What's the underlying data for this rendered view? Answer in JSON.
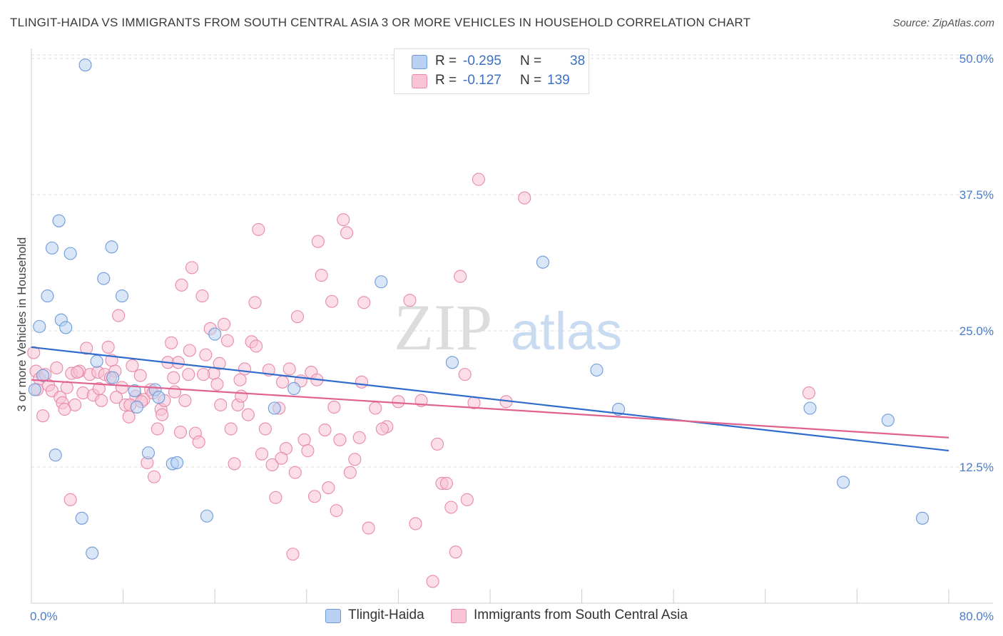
{
  "title": "TLINGIT-HAIDA VS IMMIGRANTS FROM SOUTH CENTRAL ASIA 3 OR MORE VEHICLES IN HOUSEHOLD CORRELATION CHART",
  "source": "Source: ZipAtlas.com",
  "watermark": {
    "zip": "ZIP",
    "atlas": "atlas"
  },
  "legend": {
    "r_label": "R =",
    "n_label": "N =",
    "series": [
      {
        "name": "Tlingit-Haida",
        "r": "-0.295",
        "n": "38"
      },
      {
        "name": "Immigrants from South Central Asia",
        "r": "-0.127",
        "n": "139"
      }
    ]
  },
  "colors": {
    "blue_fill": "#b8d1f3",
    "blue_stroke": "#6f9ad8",
    "blue_line": "#2f6ccb",
    "pink_fill": "#f8c3d3",
    "pink_stroke": "#e88aa8",
    "pink_line": "#e0628d",
    "tick": "#4a7cc9",
    "grid": "#dddddd"
  },
  "chart_data": {
    "type": "scatter",
    "xlabel": "",
    "ylabel": "3 or more Vehicles in Household",
    "xlim": [
      0,
      80
    ],
    "ylim": [
      0,
      50
    ],
    "x_tick_labels": [
      "0.0%",
      "80.0%"
    ],
    "y_ticks": [
      12.5,
      25.0,
      37.5,
      50.0
    ],
    "y_tick_labels": [
      "12.5%",
      "25.0%",
      "37.5%",
      "50.0%"
    ],
    "grid": "horizontal dashed",
    "legend_position": "top-center",
    "series": [
      {
        "name": "Tlingit-Haida",
        "trend": {
          "x": [
            0,
            80
          ],
          "y": [
            23.5,
            14.0
          ]
        },
        "points": [
          [
            4.7,
            49.4
          ],
          [
            2.4,
            35.1
          ],
          [
            1.8,
            32.6
          ],
          [
            3.4,
            32.1
          ],
          [
            7.0,
            32.7
          ],
          [
            6.3,
            29.8
          ],
          [
            1.4,
            28.2
          ],
          [
            7.9,
            28.2
          ],
          [
            0.7,
            25.4
          ],
          [
            2.6,
            26.0
          ],
          [
            3.0,
            25.3
          ],
          [
            5.7,
            22.2
          ],
          [
            1.0,
            20.9
          ],
          [
            0.3,
            19.6
          ],
          [
            7.1,
            20.7
          ],
          [
            9.0,
            19.5
          ],
          [
            10.8,
            19.6
          ],
          [
            11.1,
            18.9
          ],
          [
            9.2,
            18.0
          ],
          [
            16.0,
            24.7
          ],
          [
            21.2,
            17.9
          ],
          [
            22.9,
            19.7
          ],
          [
            30.5,
            29.5
          ],
          [
            36.7,
            22.1
          ],
          [
            2.1,
            13.6
          ],
          [
            10.2,
            13.8
          ],
          [
            12.3,
            12.8
          ],
          [
            12.7,
            12.9
          ],
          [
            4.4,
            7.8
          ],
          [
            15.3,
            8.0
          ],
          [
            5.3,
            4.6
          ],
          [
            44.6,
            31.3
          ],
          [
            49.3,
            21.4
          ],
          [
            51.2,
            17.8
          ],
          [
            67.9,
            17.9
          ],
          [
            74.7,
            16.8
          ],
          [
            70.8,
            11.1
          ],
          [
            77.7,
            7.8
          ]
        ]
      },
      {
        "name": "Immigrants from South Central Asia",
        "trend": {
          "x": [
            0,
            80
          ],
          "y": [
            20.5,
            15.2
          ]
        },
        "points": [
          [
            0.2,
            23.0
          ],
          [
            0.4,
            21.3
          ],
          [
            0.7,
            20.6
          ],
          [
            0.5,
            19.6
          ],
          [
            1.2,
            21.0
          ],
          [
            1.5,
            20.0
          ],
          [
            1.8,
            19.5
          ],
          [
            2.2,
            21.6
          ],
          [
            2.5,
            18.9
          ],
          [
            2.7,
            18.4
          ],
          [
            3.1,
            19.8
          ],
          [
            3.5,
            21.1
          ],
          [
            3.8,
            18.2
          ],
          [
            4.2,
            21.3
          ],
          [
            4.5,
            19.3
          ],
          [
            4.8,
            23.4
          ],
          [
            5.1,
            21.0
          ],
          [
            5.4,
            19.1
          ],
          [
            5.8,
            21.2
          ],
          [
            6.1,
            18.6
          ],
          [
            6.4,
            21.0
          ],
          [
            6.7,
            23.5
          ],
          [
            7.0,
            22.3
          ],
          [
            7.3,
            21.3
          ],
          [
            7.6,
            26.4
          ],
          [
            7.9,
            19.8
          ],
          [
            8.2,
            18.2
          ],
          [
            8.5,
            17.1
          ],
          [
            8.8,
            21.8
          ],
          [
            9.1,
            19.0
          ],
          [
            9.5,
            20.9
          ],
          [
            9.8,
            18.7
          ],
          [
            10.1,
            12.9
          ],
          [
            10.4,
            19.6
          ],
          [
            10.7,
            11.6
          ],
          [
            11.0,
            16.0
          ],
          [
            11.3,
            17.8
          ],
          [
            11.6,
            18.6
          ],
          [
            11.9,
            22.1
          ],
          [
            12.2,
            23.9
          ],
          [
            12.5,
            19.4
          ],
          [
            12.8,
            22.1
          ],
          [
            13.1,
            29.2
          ],
          [
            13.4,
            18.6
          ],
          [
            13.7,
            21.0
          ],
          [
            14.0,
            30.8
          ],
          [
            14.3,
            15.6
          ],
          [
            14.6,
            14.8
          ],
          [
            14.9,
            28.2
          ],
          [
            15.2,
            22.8
          ],
          [
            15.6,
            25.2
          ],
          [
            15.9,
            21.1
          ],
          [
            16.2,
            20.1
          ],
          [
            16.5,
            18.2
          ],
          [
            16.8,
            25.6
          ],
          [
            17.1,
            24.1
          ],
          [
            17.4,
            16.0
          ],
          [
            17.7,
            12.8
          ],
          [
            18.0,
            18.2
          ],
          [
            18.3,
            19.0
          ],
          [
            18.6,
            21.5
          ],
          [
            18.9,
            17.3
          ],
          [
            19.2,
            24.0
          ],
          [
            19.5,
            27.6
          ],
          [
            19.8,
            34.3
          ],
          [
            20.1,
            13.7
          ],
          [
            20.4,
            16.0
          ],
          [
            20.7,
            21.4
          ],
          [
            21.0,
            12.7
          ],
          [
            21.3,
            9.7
          ],
          [
            21.6,
            17.9
          ],
          [
            21.9,
            20.3
          ],
          [
            22.2,
            14.2
          ],
          [
            22.5,
            21.5
          ],
          [
            22.8,
            4.5
          ],
          [
            23.2,
            26.3
          ],
          [
            23.5,
            20.4
          ],
          [
            23.8,
            15.0
          ],
          [
            24.1,
            14.0
          ],
          [
            24.4,
            21.2
          ],
          [
            24.7,
            9.8
          ],
          [
            25.0,
            33.2
          ],
          [
            25.3,
            30.1
          ],
          [
            25.6,
            15.9
          ],
          [
            25.9,
            10.6
          ],
          [
            26.2,
            27.7
          ],
          [
            26.6,
            8.5
          ],
          [
            26.9,
            15.0
          ],
          [
            27.2,
            35.2
          ],
          [
            27.5,
            34.0
          ],
          [
            27.8,
            12.0
          ],
          [
            28.2,
            13.2
          ],
          [
            28.6,
            15.2
          ],
          [
            29.0,
            27.6
          ],
          [
            29.4,
            6.9
          ],
          [
            30.0,
            17.9
          ],
          [
            31.0,
            16.2
          ],
          [
            32.0,
            18.5
          ],
          [
            33.0,
            27.8
          ],
          [
            33.5,
            7.3
          ],
          [
            34.0,
            18.6
          ],
          [
            35.0,
            2.0
          ],
          [
            35.4,
            14.6
          ],
          [
            35.8,
            11.0
          ],
          [
            36.2,
            11.0
          ],
          [
            36.6,
            8.8
          ],
          [
            37.0,
            4.7
          ],
          [
            37.4,
            30.0
          ],
          [
            37.8,
            21.0
          ],
          [
            38.0,
            9.5
          ],
          [
            38.6,
            18.4
          ],
          [
            39.0,
            38.9
          ],
          [
            41.4,
            18.5
          ],
          [
            43.0,
            37.2
          ],
          [
            1.0,
            17.2
          ],
          [
            3.4,
            9.5
          ],
          [
            4.0,
            21.2
          ],
          [
            6.9,
            20.7
          ],
          [
            8.6,
            18.2
          ],
          [
            10.6,
            19.3
          ],
          [
            12.4,
            20.7
          ],
          [
            13.8,
            23.2
          ],
          [
            15.0,
            21.0
          ],
          [
            16.4,
            22.0
          ],
          [
            18.2,
            20.5
          ],
          [
            19.6,
            23.6
          ],
          [
            21.8,
            13.3
          ],
          [
            23.0,
            12.0
          ],
          [
            24.9,
            20.5
          ],
          [
            26.4,
            18.0
          ],
          [
            28.8,
            20.3
          ],
          [
            30.6,
            16.0
          ],
          [
            67.8,
            19.3
          ],
          [
            2.9,
            17.8
          ],
          [
            5.9,
            19.7
          ],
          [
            7.4,
            18.9
          ],
          [
            9.6,
            18.5
          ],
          [
            11.4,
            17.3
          ],
          [
            13.0,
            15.7
          ]
        ]
      }
    ]
  }
}
